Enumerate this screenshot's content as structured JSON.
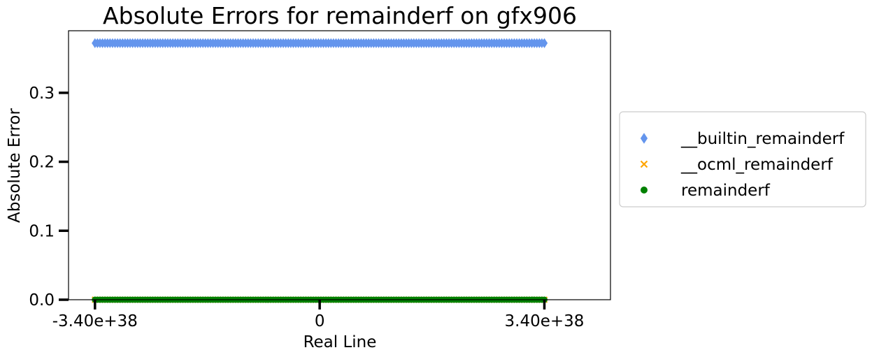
{
  "chart_data": {
    "type": "scatter",
    "title": "Absolute Errors for remainderf on gfx906",
    "xlabel": "Real Line",
    "ylabel": "Absolute Error",
    "xlim": [
      -3.8e+38,
      4.4e+38
    ],
    "ylim": [
      0,
      0.39
    ],
    "x_ticks": [
      {
        "value": -3.4e+38,
        "label": "-3.40e+38"
      },
      {
        "value": 0,
        "label": "0"
      },
      {
        "value": 3.4e+38,
        "label": "3.40e+38"
      }
    ],
    "y_ticks": [
      {
        "value": 0.0,
        "label": "0.0"
      },
      {
        "value": 0.1,
        "label": "0.1"
      },
      {
        "value": 0.2,
        "label": "0.2"
      },
      {
        "value": 0.3,
        "label": "0.3"
      }
    ],
    "grid": false,
    "legend_position": "outside-right",
    "series": [
      {
        "name": "__builtin_remainderf",
        "marker": "diamond",
        "color": "#6495ED",
        "x_range": [
          -3.4e+38,
          3.4e+38
        ],
        "y": 0.372
      },
      {
        "name": "__ocml_remainderf",
        "marker": "x",
        "color": "#FFA500",
        "x_range": [
          -3.4e+38,
          3.4e+38
        ],
        "y": 0.0
      },
      {
        "name": "remainderf",
        "marker": "circle",
        "color": "#008000",
        "x_range": [
          -3.4e+38,
          3.4e+38
        ],
        "y": 0.0
      }
    ]
  }
}
